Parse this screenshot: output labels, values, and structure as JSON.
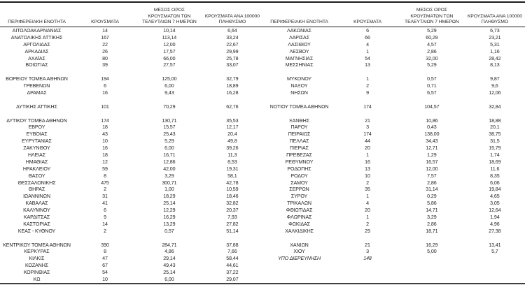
{
  "headers": {
    "region": "ΠΕΡΙΦΕΡΕΙΑΚΗ ΕΝΟΤΗΤΑ",
    "cases": "ΚΡΟΥΣΜΑΤΑ",
    "avg7_line1": "ΜΕΣΟΣ ΟΡΟΣ",
    "avg7_line2": "ΚΡΟΥΣΜΑΤΩΝ ΤΩΝ",
    "avg7_line3": "ΤΕΛΕΥΤΑΙΩΝ 7 ΗΜΕΡΩΝ",
    "per100k_line1": "ΚΡΟΥΣΜΑΤΑ ΑΝΑ 100000",
    "per100k_line2": "ΠΛΗΘΥΣΜΟ"
  },
  "colors": {
    "text": "#262626",
    "rule": "#1c1c1c",
    "background": "#ffffff"
  },
  "left_table": {
    "rows": [
      {
        "region": "ΑΙΤΩΛΟΑΚΑΡΝΑΝΙΑΣ",
        "cases": "14",
        "avg7": "10,14",
        "per100k": "6,64"
      },
      {
        "region": "ΑΝΑΤΟΛΙΚΗΣ ΑΤΤΙΚΗΣ",
        "cases": "167",
        "avg7": "113,14",
        "per100k": "33,24"
      },
      {
        "region": "ΑΡΓΟΛΙΔΑΣ",
        "cases": "22",
        "avg7": "12,00",
        "per100k": "22,67"
      },
      {
        "region": "ΑΡΚΑΔΙΑΣ",
        "cases": "26",
        "avg7": "17,57",
        "per100k": "29,99"
      },
      {
        "region": "ΑΧΑΪΑΣ",
        "cases": "80",
        "avg7": "66,00",
        "per100k": "25,78"
      },
      {
        "region": "ΒΟΙΩΤΙΑΣ",
        "cases": "39",
        "avg7": "27,57",
        "per100k": "33,07"
      },
      {
        "region": "",
        "cases": "",
        "avg7": "",
        "per100k": ""
      },
      {
        "region": "ΒΟΡΕΙΟΥ ΤΟΜΕΑ ΑΘΗΝΩΝ",
        "cases": "194",
        "avg7": "125,00",
        "per100k": "32,79"
      },
      {
        "region": "ΓΡΕΒΕΝΩΝ",
        "cases": "6",
        "avg7": "6,00",
        "per100k": "18,89"
      },
      {
        "region": "ΔΡΑΜΑΣ",
        "cases": "16",
        "avg7": "9,43",
        "per100k": "16,28"
      },
      {
        "region": "",
        "cases": "",
        "avg7": "",
        "per100k": ""
      },
      {
        "region": "ΔΥΤΙΚΗΣ ΑΤΤΙΚΗΣ",
        "cases": "101",
        "avg7": "70,29",
        "per100k": "62,76"
      },
      {
        "region": "",
        "cases": "",
        "avg7": "",
        "per100k": ""
      },
      {
        "region": "ΔΥΤΙΚΟΥ ΤΟΜΕΑ ΑΘΗΝΩΝ",
        "cases": "174",
        "avg7": "130,71",
        "per100k": "35,53"
      },
      {
        "region": "ΕΒΡΟΥ",
        "cases": "18",
        "avg7": "15,57",
        "per100k": "12,17"
      },
      {
        "region": "ΕΥΒΟΙΑΣ",
        "cases": "43",
        "avg7": "25,43",
        "per100k": "20,4"
      },
      {
        "region": "ΕΥΡΥΤΑΝΙΑΣ",
        "cases": "10",
        "avg7": "5,29",
        "per100k": "49,8"
      },
      {
        "region": "ΖΑΚΥΝΘΟΥ",
        "cases": "16",
        "avg7": "6,00",
        "per100k": "39,26"
      },
      {
        "region": "ΗΛΕΙΑΣ",
        "cases": "18",
        "avg7": "16,71",
        "per100k": "11,3"
      },
      {
        "region": "ΗΜΑΘΙΑΣ",
        "cases": "12",
        "avg7": "12,86",
        "per100k": "8,53"
      },
      {
        "region": "ΗΡΑΚΛΕΙΟΥ",
        "cases": "59",
        "avg7": "42,00",
        "per100k": "19,31"
      },
      {
        "region": "ΘΑΣΟΥ",
        "cases": "8",
        "avg7": "3,29",
        "per100k": "58,1"
      },
      {
        "region": "ΘΕΣΣΑΛΟΝΙΚΗΣ",
        "cases": "475",
        "avg7": "300,71",
        "per100k": "42,78"
      },
      {
        "region": "ΘΗΡΑΣ",
        "cases": "2",
        "avg7": "1,00",
        "per100k": "10,59"
      },
      {
        "region": "ΙΩΑΝΝΙΝΩΝ",
        "cases": "31",
        "avg7": "18,29",
        "per100k": "18,46"
      },
      {
        "region": "ΚΑΒΑΛΑΣ",
        "cases": "41",
        "avg7": "25,14",
        "per100k": "32,82"
      },
      {
        "region": "ΚΑΛΥΜΝΟΥ",
        "cases": "6",
        "avg7": "12,29",
        "per100k": "20,37"
      },
      {
        "region": "ΚΑΡΔΙΤΣΑΣ",
        "cases": "9",
        "avg7": "16,29",
        "per100k": "7,93"
      },
      {
        "region": "ΚΑΣΤΟΡΙΑΣ",
        "cases": "14",
        "avg7": "13,29",
        "per100k": "27,82"
      },
      {
        "region": "ΚΕΑΣ - ΚΥΘΝΟΥ",
        "cases": "2",
        "avg7": "0,57",
        "per100k": "51,14"
      },
      {
        "region": "",
        "cases": "",
        "avg7": "",
        "per100k": ""
      },
      {
        "region": "ΚΕΝΤΡΙΚΟΥ ΤΟΜΕΑ ΑΘΗΝΩΝ",
        "cases": "390",
        "avg7": "284,71",
        "per100k": "37,88"
      },
      {
        "region": "ΚΕΡΚΥΡΑΣ",
        "cases": "8",
        "avg7": "4,86",
        "per100k": "7,66"
      },
      {
        "region": "ΚΙΛΚΙΣ",
        "cases": "47",
        "avg7": "29,14",
        "per100k": "58,44"
      },
      {
        "region": "ΚΟΖΑΝΗΣ",
        "cases": "67",
        "avg7": "49,43",
        "per100k": "44,61"
      },
      {
        "region": "ΚΟΡΙΝΘΙΑΣ",
        "cases": "54",
        "avg7": "25,14",
        "per100k": "37,22"
      },
      {
        "region": "ΚΩ",
        "cases": "10",
        "avg7": "6,00",
        "per100k": "29,07"
      }
    ]
  },
  "right_table": {
    "rows": [
      {
        "region": "ΛΑΚΩΝΙΑΣ",
        "cases": "6",
        "avg7": "5,29",
        "per100k": "6,73"
      },
      {
        "region": "ΛΑΡΙΣΑΣ",
        "cases": "66",
        "avg7": "60,29",
        "per100k": "23,21"
      },
      {
        "region": "ΛΑΣΙΘΙΟΥ",
        "cases": "4",
        "avg7": "4,57",
        "per100k": "5,31"
      },
      {
        "region": "ΛΕΣΒΟΥ",
        "cases": "1",
        "avg7": "2,86",
        "per100k": "1,16"
      },
      {
        "region": "ΜΑΓΝΗΣΙΑΣ",
        "cases": "54",
        "avg7": "32,00",
        "per100k": "28,42"
      },
      {
        "region": "ΜΕΣΣΗΝΙΑΣ",
        "cases": "13",
        "avg7": "5,29",
        "per100k": "8,13"
      },
      {
        "region": "",
        "cases": "",
        "avg7": "",
        "per100k": ""
      },
      {
        "region": "ΜΥΚΟΝΟΥ",
        "cases": "1",
        "avg7": "0,57",
        "per100k": "9,87"
      },
      {
        "region": "ΝΑΞΟΥ",
        "cases": "2",
        "avg7": "0,71",
        "per100k": "9,6"
      },
      {
        "region": "ΝΗΣΩΝ",
        "cases": "9",
        "avg7": "6,57",
        "per100k": "12,06"
      },
      {
        "region": "",
        "cases": "",
        "avg7": "",
        "per100k": ""
      },
      {
        "region": "ΝΟΤΙΟΥ ΤΟΜΕΑ ΑΘΗΝΩΝ",
        "cases": "174",
        "avg7": "104,57",
        "per100k": "32,84"
      },
      {
        "region": "",
        "cases": "",
        "avg7": "",
        "per100k": ""
      },
      {
        "region": "ΞΑΝΘΗΣ",
        "cases": "21",
        "avg7": "10,86",
        "per100k": "18,88"
      },
      {
        "region": "ΠΑΡΟΥ",
        "cases": "3",
        "avg7": "0,43",
        "per100k": "20,1"
      },
      {
        "region": "ΠΕΙΡΑΙΩΣ",
        "cases": "174",
        "avg7": "138,00",
        "per100k": "38,75"
      },
      {
        "region": "ΠΕΛΛΑΣ",
        "cases": "44",
        "avg7": "34,43",
        "per100k": "31,5"
      },
      {
        "region": "ΠΙΕΡΙΑΣ",
        "cases": "20",
        "avg7": "12,71",
        "per100k": "15,79"
      },
      {
        "region": "ΠΡΕΒΕΖΑΣ",
        "cases": "1",
        "avg7": "1,29",
        "per100k": "1,74"
      },
      {
        "region": "ΡΕΘΥΜΝΟΥ",
        "cases": "16",
        "avg7": "16,57",
        "per100k": "18,69"
      },
      {
        "region": "ΡΟΔΟΠΗΣ",
        "cases": "13",
        "avg7": "12,00",
        "per100k": "11,6"
      },
      {
        "region": "ΡΟΔΟΥ",
        "cases": "10",
        "avg7": "7,57",
        "per100k": "8,35"
      },
      {
        "region": "ΣΑΜΟΥ",
        "cases": "2",
        "avg7": "2,86",
        "per100k": "6,06"
      },
      {
        "region": "ΣΕΡΡΩΝ",
        "cases": "35",
        "avg7": "31,14",
        "per100k": "19,84"
      },
      {
        "region": "ΣΥΡΟΥ",
        "cases": "1",
        "avg7": "0,29",
        "per100k": "4,65"
      },
      {
        "region": "ΤΡΙΚΑΛΩΝ",
        "cases": "4",
        "avg7": "5,86",
        "per100k": "3,05"
      },
      {
        "region": "ΦΘΙΩΤΙΔΑΣ",
        "cases": "20",
        "avg7": "14,71",
        "per100k": "12,64"
      },
      {
        "region": "ΦΛΩΡΙΝΑΣ",
        "cases": "1",
        "avg7": "3,29",
        "per100k": "1,94"
      },
      {
        "region": "ΦΩΚΙΔΑΣ",
        "cases": "2",
        "avg7": "2,86",
        "per100k": "4,96"
      },
      {
        "region": "ΧΑΛΚΙΔΙΚΗΣ",
        "cases": "29",
        "avg7": "18,71",
        "per100k": "27,38"
      },
      {
        "region": "",
        "cases": "",
        "avg7": "",
        "per100k": ""
      },
      {
        "region": "ΧΑΝΙΩΝ",
        "cases": "21",
        "avg7": "16,29",
        "per100k": "13,41"
      },
      {
        "region": "ΧΙΟΥ",
        "cases": "3",
        "avg7": "5,00",
        "per100k": "5,7"
      },
      {
        "region": "ΥΠΟ ΔΙΕΡΕΥΝΗΣΗ",
        "cases": "148",
        "avg7": "",
        "per100k": "",
        "italic": true
      },
      {
        "region": "",
        "cases": "",
        "avg7": "",
        "per100k": ""
      },
      {
        "region": "",
        "cases": "",
        "avg7": "",
        "per100k": ""
      },
      {
        "region": "",
        "cases": "",
        "avg7": "",
        "per100k": ""
      }
    ]
  }
}
